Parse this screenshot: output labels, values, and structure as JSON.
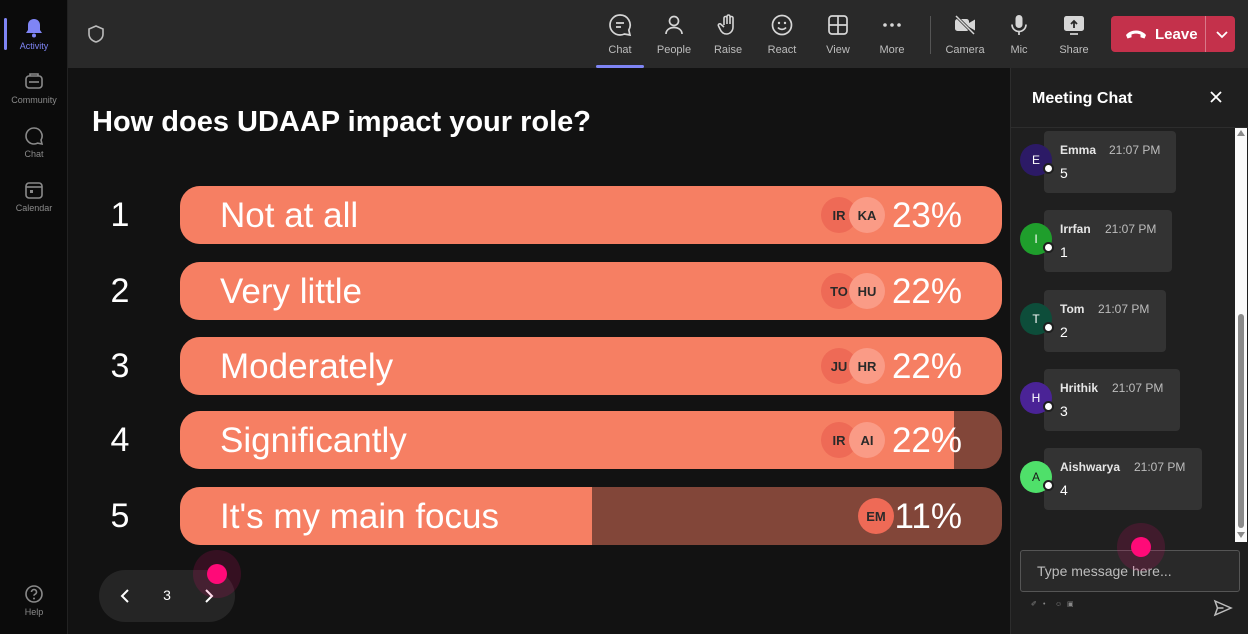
{
  "rail": {
    "items": [
      {
        "label": "Activity",
        "icon": "bell-icon",
        "active": true
      },
      {
        "label": "Community",
        "icon": "community-icon"
      },
      {
        "label": "Chat",
        "icon": "chat-icon"
      },
      {
        "label": "Calendar",
        "icon": "calendar-icon"
      }
    ],
    "help": {
      "label": "Help",
      "icon": "help-icon"
    }
  },
  "toolbar": {
    "buttons": [
      {
        "label": "Chat",
        "icon": "chat-icon",
        "active": true
      },
      {
        "label": "People",
        "icon": "people-icon"
      },
      {
        "label": "Raise",
        "icon": "raise-hand-icon"
      },
      {
        "label": "React",
        "icon": "react-icon"
      },
      {
        "label": "View",
        "icon": "view-icon"
      },
      {
        "label": "More",
        "icon": "more-icon"
      },
      {
        "label": "Camera",
        "icon": "camera-off-icon"
      },
      {
        "label": "Mic",
        "icon": "mic-icon"
      },
      {
        "label": "Share",
        "icon": "share-icon"
      }
    ],
    "leave_label": "Leave",
    "leave_color": "#c4314b"
  },
  "poll": {
    "question": "How does UDAAP impact your role?",
    "options": [
      {
        "number": "1",
        "label": "Not at all",
        "percent": "23%",
        "fill": 1.0,
        "avatars": [
          "IR",
          "KA"
        ]
      },
      {
        "number": "2",
        "label": "Very little",
        "percent": "22%",
        "fill": 1.0,
        "avatars": [
          "TO",
          "HU"
        ]
      },
      {
        "number": "3",
        "label": "Moderately",
        "percent": "22%",
        "fill": 1.0,
        "avatars": [
          "JU",
          "HR"
        ]
      },
      {
        "number": "4",
        "label": "Significantly",
        "percent": "22%",
        "fill": 0.942,
        "avatars": [
          "IR",
          "AI"
        ]
      },
      {
        "number": "5",
        "label": "It's my main focus",
        "percent": "11%",
        "fill": 0.501,
        "avatars": [
          "EM"
        ]
      }
    ],
    "bar_color": "#f67f63",
    "track_color": "#824639",
    "pager": {
      "page": "3"
    }
  },
  "chat": {
    "title": "Meeting Chat",
    "messages": [
      {
        "initial": "E",
        "name": "Emma",
        "time": "21:07 PM",
        "text": "5",
        "color": "#2c1a66"
      },
      {
        "initial": "I",
        "name": "Irrfan",
        "time": "21:07 PM",
        "text": "1",
        "color": "#1f9e2c"
      },
      {
        "initial": "T",
        "name": "Tom",
        "time": "21:07 PM",
        "text": "2",
        "color": "#0d4d3a"
      },
      {
        "initial": "H",
        "name": "Hrithik",
        "time": "21:07 PM",
        "text": "3",
        "color": "#4a2396"
      },
      {
        "initial": "A",
        "name": "Aishwarya",
        "time": "21:07 PM",
        "text": "4",
        "color": "#4fe06a"
      }
    ],
    "compose_placeholder": "Type message here..."
  },
  "accent_color": "#7f85f5"
}
